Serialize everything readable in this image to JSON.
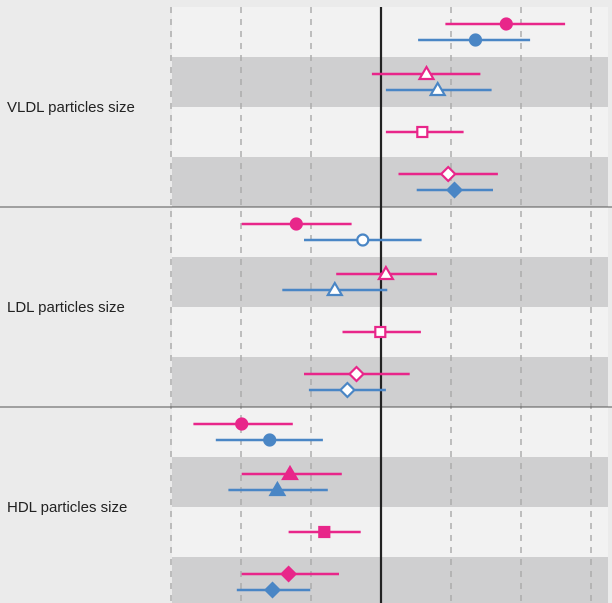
{
  "chart_data": {
    "type": "forest",
    "reference_line": 0,
    "colors": {
      "pink": "#e8268a",
      "blue": "#4a86c5"
    },
    "groups": [
      {
        "label": "VLDL particles size",
        "bands": [
          {
            "shade": false,
            "rows": [
              {
                "color": "pink",
                "shape": "circle",
                "filled": true,
                "estimate": 0.179,
                "ci": [
                  0.092,
                  0.263
                ]
              },
              {
                "color": "blue",
                "shape": "circle",
                "filled": true,
                "estimate": 0.135,
                "ci": [
                  0.053,
                  0.213
                ]
              }
            ]
          },
          {
            "shade": true,
            "rows": [
              {
                "color": "pink",
                "shape": "triangle",
                "filled": false,
                "estimate": 0.065,
                "ci": [
                  -0.013,
                  0.142
                ]
              },
              {
                "color": "blue",
                "shape": "triangle",
                "filled": false,
                "estimate": 0.081,
                "ci": [
                  0.007,
                  0.158
                ]
              }
            ]
          },
          {
            "shade": false,
            "rows": [
              {
                "color": "pink",
                "shape": "square",
                "filled": false,
                "estimate": 0.059,
                "ci": [
                  0.007,
                  0.118
                ]
              }
            ]
          },
          {
            "shade": true,
            "rows": [
              {
                "color": "pink",
                "shape": "diamond",
                "filled": false,
                "estimate": 0.096,
                "ci": [
                  0.025,
                  0.167
                ]
              },
              {
                "color": "blue",
                "shape": "diamond",
                "filled": true,
                "estimate": 0.105,
                "ci": [
                  0.051,
                  0.16
                ]
              }
            ]
          }
        ]
      },
      {
        "label": "LDL particles size",
        "bands": [
          {
            "shade": false,
            "rows": [
              {
                "color": "pink",
                "shape": "circle",
                "filled": true,
                "estimate": -0.121,
                "ci": [
                  -0.199,
                  -0.042
                ]
              },
              {
                "color": "blue",
                "shape": "circle",
                "filled": false,
                "estimate": -0.026,
                "ci": [
                  -0.11,
                  0.058
                ]
              }
            ]
          },
          {
            "shade": true,
            "rows": [
              {
                "color": "pink",
                "shape": "triangle",
                "filled": false,
                "estimate": 0.007,
                "ci": [
                  -0.064,
                  0.08
                ]
              },
              {
                "color": "blue",
                "shape": "triangle",
                "filled": false,
                "estimate": -0.066,
                "ci": [
                  -0.141,
                  0.009
                ]
              }
            ]
          },
          {
            "shade": false,
            "rows": [
              {
                "color": "pink",
                "shape": "square",
                "filled": false,
                "estimate": -0.001,
                "ci": [
                  -0.055,
                  0.057
                ]
              }
            ]
          },
          {
            "shade": true,
            "rows": [
              {
                "color": "pink",
                "shape": "diamond",
                "filled": false,
                "estimate": -0.035,
                "ci": [
                  -0.11,
                  0.041
                ]
              },
              {
                "color": "blue",
                "shape": "diamond",
                "filled": false,
                "estimate": -0.048,
                "ci": [
                  -0.103,
                  0.007
                ]
              }
            ]
          }
        ]
      },
      {
        "label": "HDL particles size",
        "bands": [
          {
            "shade": false,
            "rows": [
              {
                "color": "pink",
                "shape": "circle",
                "filled": true,
                "estimate": -0.199,
                "ci": [
                  -0.268,
                  -0.126
                ]
              },
              {
                "color": "blue",
                "shape": "circle",
                "filled": true,
                "estimate": -0.159,
                "ci": [
                  -0.236,
                  -0.083
                ]
              }
            ]
          },
          {
            "shade": true,
            "rows": [
              {
                "color": "pink",
                "shape": "triangle",
                "filled": true,
                "estimate": -0.13,
                "ci": [
                  -0.199,
                  -0.056
                ]
              },
              {
                "color": "blue",
                "shape": "triangle",
                "filled": true,
                "estimate": -0.148,
                "ci": [
                  -0.218,
                  -0.076
                ]
              }
            ]
          },
          {
            "shade": false,
            "rows": [
              {
                "color": "pink",
                "shape": "square",
                "filled": true,
                "estimate": -0.081,
                "ci": [
                  -0.132,
                  -0.029
                ]
              }
            ]
          },
          {
            "shade": true,
            "rows": [
              {
                "color": "pink",
                "shape": "diamond",
                "filled": true,
                "estimate": -0.132,
                "ci": [
                  -0.199,
                  -0.06
                ]
              },
              {
                "color": "blue",
                "shape": "diamond",
                "filled": true,
                "estimate": -0.155,
                "ci": [
                  -0.206,
                  -0.101
                ]
              }
            ]
          }
        ]
      }
    ],
    "grid_x": [
      -0.3,
      -0.2,
      -0.1,
      0.1,
      0.2,
      0.3
    ],
    "xlim": [
      -0.3,
      0.3
    ],
    "grid": true
  }
}
